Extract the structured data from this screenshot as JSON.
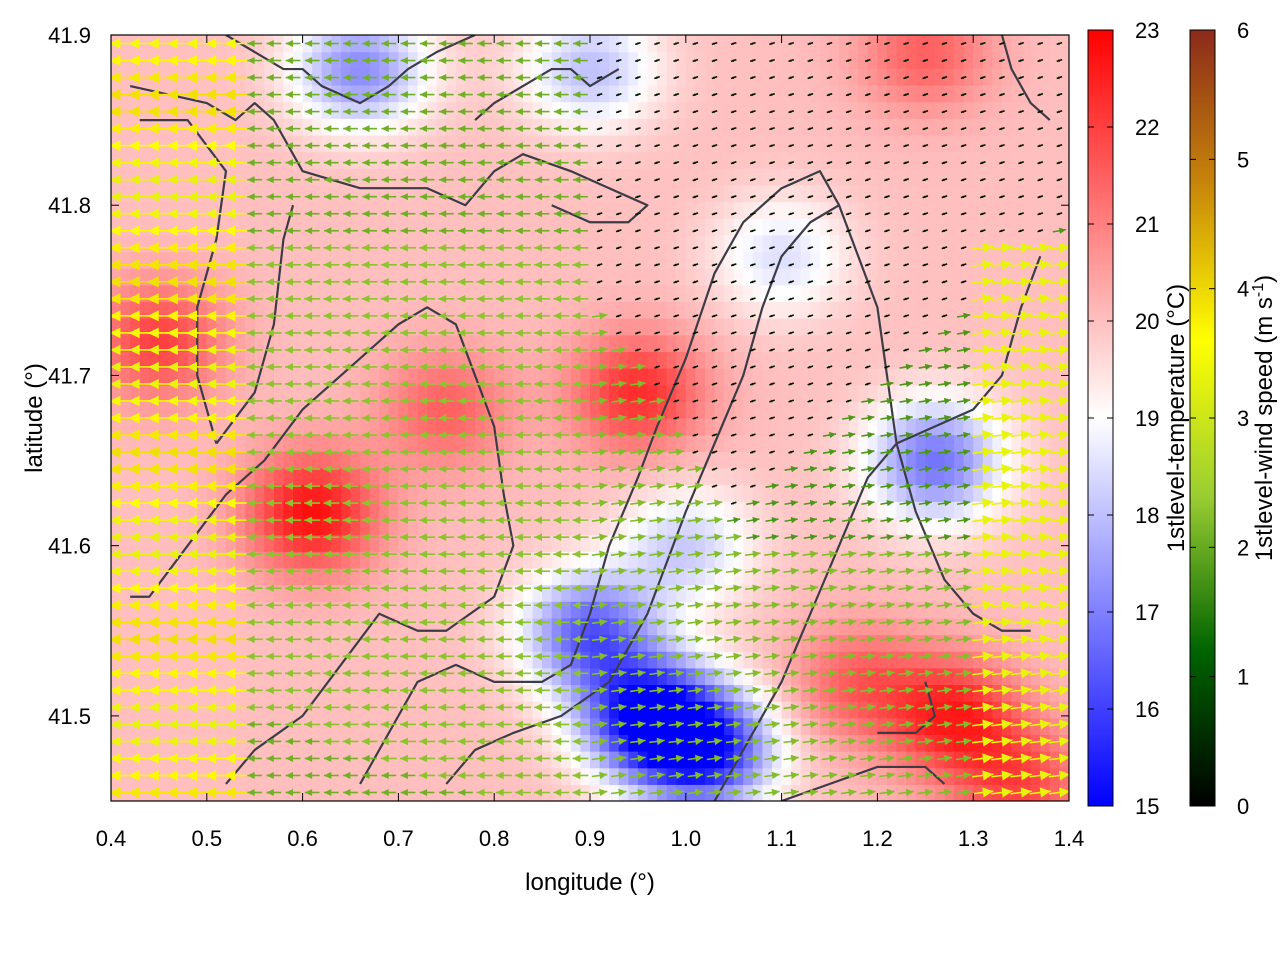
{
  "chart_data": {
    "type": "heatmap",
    "title": "",
    "xlabel": "longitude (°)",
    "ylabel": "latitude (°)",
    "xlim": [
      0.4,
      1.4
    ],
    "ylim": [
      41.45,
      41.9
    ],
    "x_ticks": [
      "0.4",
      "0.5",
      "0.6",
      "0.7",
      "0.8",
      "0.9",
      "1.0",
      "1.1",
      "1.2",
      "1.3",
      "1.4"
    ],
    "y_ticks": [
      "41.5",
      "41.6",
      "41.7",
      "41.8",
      "41.9"
    ],
    "colorbars": [
      {
        "label": "1stlevel-temperature (°C)",
        "range": [
          15,
          23
        ],
        "ticks": [
          "15",
          "16",
          "17",
          "18",
          "19",
          "20",
          "21",
          "22",
          "23"
        ],
        "colors": [
          "#0000ff",
          "#ffffff",
          "#ff0000"
        ]
      },
      {
        "label_main": "1stlevel-wind speed (m s",
        "label_sup": "-1",
        "label_end": ")",
        "range": [
          0,
          6
        ],
        "ticks": [
          "0",
          "1",
          "2",
          "3",
          "4",
          "5",
          "6"
        ],
        "colors": [
          "#000000",
          "#006400",
          "#9acd32",
          "#ffff00",
          "#c8860a",
          "#8b2a1a"
        ]
      }
    ],
    "temperature_hotspots": [
      {
        "lon": 0.61,
        "lat": 41.62,
        "temp": 22.8
      },
      {
        "lon": 0.45,
        "lat": 41.72,
        "temp": 22.0
      },
      {
        "lon": 0.95,
        "lat": 41.69,
        "temp": 22.3
      },
      {
        "lon": 0.75,
        "lat": 41.68,
        "temp": 21.5
      },
      {
        "lon": 1.28,
        "lat": 41.5,
        "temp": 22.5
      },
      {
        "lon": 1.18,
        "lat": 41.52,
        "temp": 21.5
      },
      {
        "lon": 1.25,
        "lat": 41.89,
        "temp": 21.5
      },
      {
        "lon": 1.35,
        "lat": 41.46,
        "temp": 21.8
      },
      {
        "lon": 0.96,
        "lat": 41.5,
        "temp": 15.3
      },
      {
        "lon": 1.02,
        "lat": 41.48,
        "temp": 15.5
      },
      {
        "lon": 0.9,
        "lat": 41.55,
        "temp": 16.5
      },
      {
        "lon": 1.26,
        "lat": 41.65,
        "temp": 16.8
      },
      {
        "lon": 0.66,
        "lat": 41.88,
        "temp": 17.2
      },
      {
        "lon": 0.9,
        "lat": 41.88,
        "temp": 18.0
      },
      {
        "lon": 1.1,
        "lat": 41.77,
        "temp": 18.5
      },
      {
        "lon": 1.0,
        "lat": 41.6,
        "temp": 18.2
      }
    ],
    "background_temperature": 20.0,
    "wind_field": {
      "west": {
        "u": -3.6,
        "v": 0.0,
        "lon_max": 0.55
      },
      "central": {
        "u": -2.3,
        "v": 0.0,
        "lon_max": 0.9
      },
      "calm_north": {
        "u": -0.3,
        "v": -0.1
      },
      "southeast": {
        "u": 2.2,
        "v": 0.3
      },
      "east_edge": {
        "u": 3.3,
        "v": 0.4
      }
    },
    "coastlines": [
      [
        [
          0.42,
          41.87
        ],
        [
          0.5,
          41.86
        ],
        [
          0.53,
          41.85
        ],
        [
          0.55,
          41.86
        ],
        [
          0.57,
          41.85
        ],
        [
          0.6,
          41.82
        ],
        [
          0.66,
          41.81
        ],
        [
          0.73,
          41.81
        ],
        [
          0.77,
          41.8
        ],
        [
          0.8,
          41.82
        ],
        [
          0.83,
          41.83
        ],
        [
          0.88,
          41.82
        ],
        [
          0.92,
          41.81
        ],
        [
          0.96,
          41.8
        ],
        [
          0.94,
          41.79
        ],
        [
          0.9,
          41.79
        ],
        [
          0.86,
          41.8
        ]
      ],
      [
        [
          0.43,
          41.85
        ],
        [
          0.48,
          41.85
        ],
        [
          0.52,
          41.82
        ],
        [
          0.51,
          41.78
        ],
        [
          0.49,
          41.74
        ],
        [
          0.49,
          41.7
        ],
        [
          0.51,
          41.66
        ]
      ],
      [
        [
          0.51,
          41.66
        ],
        [
          0.55,
          41.69
        ],
        [
          0.57,
          41.73
        ],
        [
          0.58,
          41.78
        ],
        [
          0.59,
          41.8
        ]
      ],
      [
        [
          0.42,
          41.57
        ],
        [
          0.44,
          41.57
        ],
        [
          0.48,
          41.6
        ],
        [
          0.52,
          41.63
        ],
        [
          0.56,
          41.65
        ],
        [
          0.6,
          41.68
        ],
        [
          0.66,
          41.71
        ],
        [
          0.7,
          41.73
        ],
        [
          0.73,
          41.74
        ],
        [
          0.76,
          41.73
        ],
        [
          0.78,
          41.7
        ],
        [
          0.8,
          41.67
        ],
        [
          0.81,
          41.63
        ],
        [
          0.82,
          41.6
        ],
        [
          0.8,
          41.57
        ],
        [
          0.75,
          41.55
        ],
        [
          0.72,
          41.55
        ],
        [
          0.68,
          41.56
        ],
        [
          0.64,
          41.53
        ],
        [
          0.6,
          41.5
        ],
        [
          0.55,
          41.48
        ],
        [
          0.52,
          41.46
        ]
      ],
      [
        [
          0.66,
          41.46
        ],
        [
          0.7,
          41.5
        ],
        [
          0.72,
          41.52
        ],
        [
          0.76,
          41.53
        ],
        [
          0.8,
          41.52
        ],
        [
          0.85,
          41.52
        ],
        [
          0.88,
          41.53
        ],
        [
          0.9,
          41.56
        ],
        [
          0.92,
          41.6
        ],
        [
          0.95,
          41.64
        ],
        [
          0.97,
          41.67
        ],
        [
          1.0,
          41.71
        ],
        [
          1.03,
          41.76
        ],
        [
          1.06,
          41.79
        ],
        [
          1.1,
          41.81
        ],
        [
          1.14,
          41.82
        ],
        [
          1.16,
          41.8
        ],
        [
          1.18,
          41.77
        ],
        [
          1.2,
          41.74
        ],
        [
          1.21,
          41.7
        ],
        [
          1.22,
          41.66
        ],
        [
          1.24,
          41.62
        ],
        [
          1.27,
          41.58
        ],
        [
          1.3,
          41.56
        ],
        [
          1.33,
          41.55
        ],
        [
          1.36,
          41.55
        ]
      ],
      [
        [
          0.75,
          41.46
        ],
        [
          0.78,
          41.48
        ],
        [
          0.82,
          41.49
        ],
        [
          0.87,
          41.5
        ],
        [
          0.92,
          41.52
        ],
        [
          0.96,
          41.56
        ],
        [
          1.0,
          41.62
        ],
        [
          1.03,
          41.66
        ],
        [
          1.06,
          41.7
        ],
        [
          1.08,
          41.74
        ],
        [
          1.1,
          41.77
        ],
        [
          1.13,
          41.79
        ],
        [
          1.16,
          41.8
        ]
      ],
      [
        [
          1.03,
          41.45
        ],
        [
          1.06,
          41.48
        ],
        [
          1.1,
          41.52
        ],
        [
          1.13,
          41.56
        ],
        [
          1.16,
          41.6
        ],
        [
          1.19,
          41.64
        ],
        [
          1.22,
          41.66
        ],
        [
          1.26,
          41.67
        ],
        [
          1.3,
          41.68
        ],
        [
          1.33,
          41.7
        ],
        [
          1.35,
          41.74
        ],
        [
          1.37,
          41.77
        ]
      ],
      [
        [
          1.1,
          41.45
        ],
        [
          1.15,
          41.46
        ],
        [
          1.2,
          41.47
        ],
        [
          1.25,
          41.47
        ],
        [
          1.27,
          41.46
        ]
      ],
      [
        [
          1.2,
          41.49
        ],
        [
          1.24,
          41.49
        ],
        [
          1.26,
          41.5
        ],
        [
          1.25,
          41.52
        ]
      ],
      [
        [
          0.52,
          41.9
        ],
        [
          0.55,
          41.89
        ],
        [
          0.58,
          41.88
        ],
        [
          0.6,
          41.88
        ],
        [
          0.62,
          41.87
        ],
        [
          0.66,
          41.86
        ],
        [
          0.69,
          41.87
        ],
        [
          0.71,
          41.88
        ],
        [
          0.74,
          41.89
        ],
        [
          0.78,
          41.9
        ]
      ],
      [
        [
          0.78,
          41.85
        ],
        [
          0.8,
          41.86
        ],
        [
          0.83,
          41.87
        ],
        [
          0.86,
          41.88
        ],
        [
          0.88,
          41.88
        ],
        [
          0.9,
          41.87
        ],
        [
          0.93,
          41.88
        ]
      ],
      [
        [
          1.33,
          41.9
        ],
        [
          1.34,
          41.88
        ],
        [
          1.36,
          41.86
        ],
        [
          1.38,
          41.85
        ]
      ]
    ]
  }
}
